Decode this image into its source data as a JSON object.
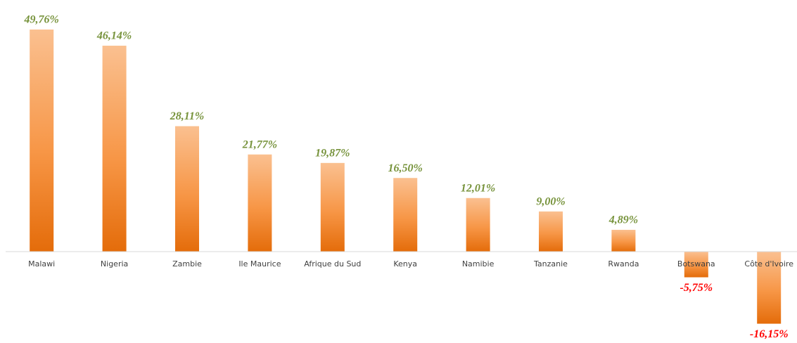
{
  "chart_data": {
    "type": "bar",
    "categories": [
      "Malawi",
      "Nigeria",
      "Zambie",
      "Ile Maurice",
      "Afrique du Sud",
      "Kenya",
      "Namibie",
      "Tanzanie",
      "Rwanda",
      "Botswana",
      "Côte d'Ivoire"
    ],
    "values": [
      49.76,
      46.14,
      28.11,
      21.77,
      19.87,
      16.5,
      12.01,
      9.0,
      4.89,
      -5.75,
      -16.15
    ],
    "value_labels": [
      "49,76%",
      "46,14%",
      "28,11%",
      "21,77%",
      "19,87%",
      "16,50%",
      "12,01%",
      "9,00%",
      "4,89%",
      "-5,75%",
      "-16,15%"
    ],
    "ylim": [
      -20,
      50
    ],
    "color_top": "#fac090",
    "color_bottom": "#e46c0a",
    "positive_label_color": "#77933c",
    "negative_label_color": "#ff0000"
  }
}
